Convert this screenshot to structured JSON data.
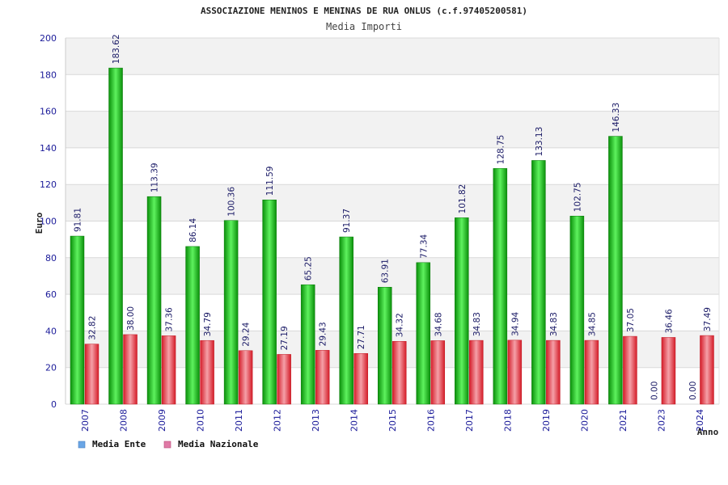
{
  "chart_data": {
    "type": "bar",
    "title": "ASSOCIAZIONE MENINOS E MENINAS DE RUA ONLUS (c.f.97405200581)",
    "subtitle": "Media Importi",
    "ylabel": "Euro",
    "xlabel": "Anno",
    "ylim": [
      0,
      200
    ],
    "yticks": [
      0,
      20,
      40,
      60,
      80,
      100,
      120,
      140,
      160,
      180,
      200
    ],
    "grid": true,
    "legend_position": "bottom-left",
    "categories": [
      "2007",
      "2008",
      "2009",
      "2010",
      "2011",
      "2012",
      "2013",
      "2014",
      "2015",
      "2016",
      "2017",
      "2018",
      "2019",
      "2020",
      "2021",
      "2023",
      "2024"
    ],
    "series": [
      {
        "name": "Media Ente",
        "legend_color": "#6aa6e6",
        "bar_color": "#11b311",
        "values": [
          91.81,
          183.62,
          113.39,
          86.14,
          100.36,
          111.59,
          65.25,
          91.37,
          63.91,
          77.34,
          101.82,
          128.75,
          133.13,
          102.75,
          146.33,
          0.0,
          0.0
        ],
        "labels": [
          "91.81",
          "183.62",
          "113.39",
          "86.14",
          "100.36",
          "111.59",
          "65.25",
          "91.37",
          "63.91",
          "77.34",
          "101.82",
          "128.75",
          "133.13",
          "102.75",
          "146.33",
          "0.00",
          "0.00"
        ]
      },
      {
        "name": "Media Nazionale",
        "legend_color": "#e07aa6",
        "bar_color": "#e0303a",
        "values": [
          32.82,
          38.0,
          37.36,
          34.79,
          29.24,
          27.19,
          29.43,
          27.71,
          34.32,
          34.68,
          34.83,
          34.94,
          34.83,
          34.85,
          37.05,
          36.46,
          37.49
        ],
        "labels": [
          "32.82",
          "38.00",
          "37.36",
          "34.79",
          "29.24",
          "27.19",
          "29.43",
          "27.71",
          "34.32",
          "34.68",
          "34.83",
          "34.94",
          "34.83",
          "34.85",
          "37.05",
          "36.46",
          "37.49"
        ]
      }
    ]
  }
}
